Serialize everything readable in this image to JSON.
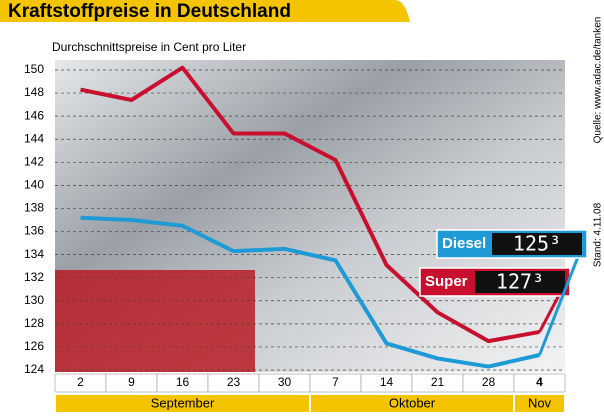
{
  "chart_data": {
    "type": "line",
    "title": "Kraftstoffpreise in Deutschland",
    "subtitle": "Durchschnittspreise in Cent pro Liter",
    "source": "Quelle: www.adac.de/tanken",
    "date": "Stand: 4.11.08",
    "categories": [
      "2",
      "9",
      "16",
      "23",
      "30",
      "7",
      "14",
      "21",
      "28",
      "4"
    ],
    "months": [
      "September",
      "Oktober",
      "Nov"
    ],
    "series": [
      {
        "name": "Super",
        "color": "#c8102e",
        "values": [
          148.3,
          147.4,
          150.2,
          144.5,
          144.5,
          142.2,
          133.1,
          129,
          126.5,
          127.3
        ],
        "value_labels": [
          null,
          null,
          null,
          null,
          null,
          null,
          null,
          null,
          null,
          "127³"
        ]
      },
      {
        "name": "Diesel",
        "color": "#1e9ad6",
        "values": [
          137.2,
          137,
          136.5,
          134.3,
          134.5,
          133.5,
          126.3,
          125,
          124.3,
          125.3
        ],
        "value_labels": [
          null,
          null,
          null,
          null,
          null,
          null,
          null,
          null,
          null,
          "125³"
        ]
      }
    ],
    "ylim": [
      124,
      150
    ],
    "yticks": [
      124,
      126,
      128,
      130,
      132,
      134,
      136,
      138,
      140,
      142,
      144,
      146,
      148,
      150
    ],
    "grid": true
  }
}
